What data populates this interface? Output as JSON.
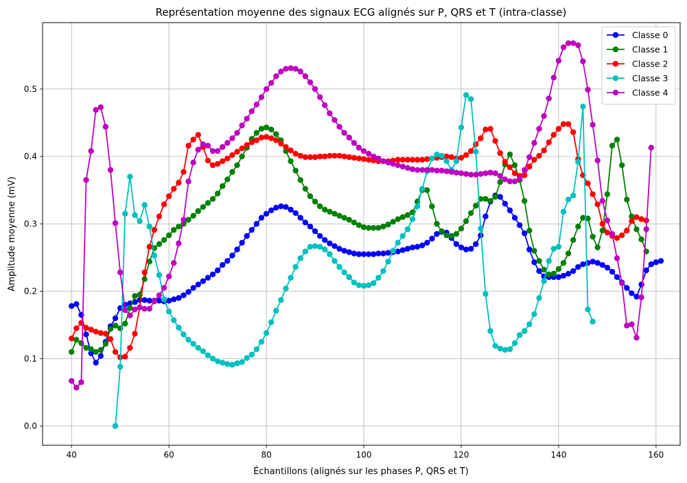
{
  "chart_data": {
    "type": "line",
    "title": "Représentation moyenne des signaux ECG alignés sur P, QRS et T (intra-classe)",
    "xlabel": "Échantillons (alignés sur les phases P, QRS et T)",
    "ylabel": "Amplitude moyenne (mV)",
    "xlim": [
      34.05,
      164.95
    ],
    "ylim": [
      -0.0285,
      0.5985
    ],
    "xticks": [
      40,
      60,
      80,
      100,
      120,
      140,
      160
    ],
    "yticks": [
      0.0,
      0.1,
      0.2,
      0.3,
      0.4,
      0.5
    ],
    "xtick_labels": [
      "40",
      "60",
      "80",
      "100",
      "120",
      "140",
      "160"
    ],
    "ytick_labels": [
      "0.0",
      "0.1",
      "0.2",
      "0.3",
      "0.4",
      "0.5"
    ],
    "grid": true,
    "legend_position": "top-right",
    "colors": {
      "Classe 0": "#0000ff",
      "Classe 1": "#008000",
      "Classe 2": "#ff0000",
      "Classe 3": "#00bfbf",
      "Classe 4": "#bf00bf"
    },
    "series": [
      {
        "name": "Classe 0",
        "x_start": 40,
        "values": [
          0.178,
          0.181,
          0.165,
          0.136,
          0.108,
          0.094,
          0.104,
          0.125,
          0.148,
          0.16,
          0.175,
          0.18,
          0.182,
          0.184,
          0.187,
          0.187,
          0.186,
          0.186,
          0.186,
          0.185,
          0.186,
          0.188,
          0.19,
          0.194,
          0.199,
          0.205,
          0.21,
          0.215,
          0.22,
          0.225,
          0.231,
          0.239,
          0.245,
          0.253,
          0.262,
          0.272,
          0.282,
          0.291,
          0.3,
          0.309,
          0.315,
          0.32,
          0.324,
          0.326,
          0.325,
          0.321,
          0.316,
          0.309,
          0.302,
          0.296,
          0.289,
          0.282,
          0.276,
          0.271,
          0.267,
          0.263,
          0.26,
          0.258,
          0.256,
          0.255,
          0.255,
          0.255,
          0.255,
          0.256,
          0.256,
          0.257,
          0.258,
          0.259,
          0.261,
          0.263,
          0.265,
          0.266,
          0.268,
          0.272,
          0.278,
          0.285,
          0.288,
          0.287,
          0.279,
          0.27,
          0.265,
          0.262,
          0.263,
          0.27,
          0.283,
          0.311,
          0.333,
          0.342,
          0.34,
          0.33,
          0.32,
          0.309,
          0.298,
          0.286,
          0.262,
          0.243,
          0.23,
          0.222,
          0.221,
          0.221,
          0.221,
          0.223,
          0.226,
          0.23,
          0.236,
          0.24,
          0.242,
          0.244,
          0.242,
          0.239,
          0.235,
          0.229,
          0.221,
          0.213,
          0.205,
          0.197,
          0.192,
          0.21,
          0.231,
          0.24,
          0.243,
          0.245
        ]
      },
      {
        "name": "Classe 1",
        "x_start": 40,
        "values": [
          0.11,
          0.128,
          0.123,
          0.116,
          0.114,
          0.11,
          0.113,
          0.122,
          0.144,
          0.149,
          0.145,
          0.152,
          0.175,
          0.193,
          0.195,
          0.218,
          0.244,
          0.264,
          0.27,
          0.276,
          0.283,
          0.291,
          0.296,
          0.3,
          0.306,
          0.312,
          0.319,
          0.325,
          0.331,
          0.337,
          0.345,
          0.356,
          0.366,
          0.377,
          0.387,
          0.4,
          0.413,
          0.426,
          0.435,
          0.441,
          0.443,
          0.44,
          0.433,
          0.424,
          0.408,
          0.393,
          0.379,
          0.365,
          0.352,
          0.341,
          0.333,
          0.326,
          0.321,
          0.318,
          0.315,
          0.312,
          0.309,
          0.306,
          0.302,
          0.298,
          0.295,
          0.294,
          0.294,
          0.294,
          0.296,
          0.299,
          0.303,
          0.307,
          0.31,
          0.313,
          0.317,
          0.333,
          0.35,
          0.35,
          0.326,
          0.3,
          0.289,
          0.283,
          0.282,
          0.285,
          0.293,
          0.304,
          0.316,
          0.327,
          0.337,
          0.337,
          0.334,
          0.34,
          0.362,
          0.388,
          0.403,
          0.387,
          0.365,
          0.334,
          0.29,
          0.26,
          0.245,
          0.232,
          0.225,
          0.226,
          0.233,
          0.242,
          0.256,
          0.276,
          0.296,
          0.309,
          0.308,
          0.281,
          0.265,
          0.29,
          0.344,
          0.416,
          0.425,
          0.387,
          0.336,
          0.311,
          0.292,
          0.277,
          0.259
        ]
      },
      {
        "name": "Classe 2",
        "x_start": 40,
        "values": [
          0.13,
          0.145,
          0.153,
          0.146,
          0.143,
          0.14,
          0.138,
          0.137,
          0.129,
          0.11,
          0.102,
          0.103,
          0.116,
          0.137,
          0.176,
          0.228,
          0.266,
          0.291,
          0.311,
          0.329,
          0.341,
          0.352,
          0.361,
          0.377,
          0.416,
          0.425,
          0.432,
          0.414,
          0.394,
          0.387,
          0.389,
          0.393,
          0.397,
          0.402,
          0.407,
          0.412,
          0.417,
          0.421,
          0.424,
          0.428,
          0.429,
          0.427,
          0.424,
          0.419,
          0.414,
          0.409,
          0.404,
          0.401,
          0.399,
          0.399,
          0.399,
          0.4,
          0.4,
          0.401,
          0.401,
          0.401,
          0.4,
          0.399,
          0.398,
          0.397,
          0.396,
          0.395,
          0.394,
          0.393,
          0.393,
          0.393,
          0.394,
          0.395,
          0.395,
          0.395,
          0.395,
          0.395,
          0.395,
          0.396,
          0.397,
          0.398,
          0.399,
          0.4,
          0.399,
          0.397,
          0.398,
          0.402,
          0.408,
          0.418,
          0.427,
          0.44,
          0.441,
          0.423,
          0.405,
          0.392,
          0.384,
          0.375,
          0.371,
          0.372,
          0.385,
          0.395,
          0.401,
          0.409,
          0.421,
          0.432,
          0.441,
          0.448,
          0.448,
          0.436,
          0.396,
          0.372,
          0.36,
          0.344,
          0.329,
          0.3,
          0.287,
          0.282,
          0.279,
          0.283,
          0.29,
          0.304,
          0.31,
          0.307,
          0.305
        ]
      },
      {
        "name": "Classe 3",
        "x_start": 49,
        "values": [
          0.0,
          0.088,
          0.315,
          0.37,
          0.313,
          0.304,
          0.328,
          0.296,
          0.253,
          0.224,
          0.188,
          0.17,
          0.157,
          0.146,
          0.136,
          0.128,
          0.122,
          0.116,
          0.111,
          0.105,
          0.1,
          0.096,
          0.094,
          0.092,
          0.091,
          0.093,
          0.095,
          0.101,
          0.106,
          0.114,
          0.125,
          0.138,
          0.154,
          0.171,
          0.187,
          0.204,
          0.22,
          0.236,
          0.249,
          0.259,
          0.266,
          0.267,
          0.266,
          0.262,
          0.255,
          0.245,
          0.236,
          0.228,
          0.221,
          0.213,
          0.209,
          0.208,
          0.209,
          0.212,
          0.22,
          0.23,
          0.244,
          0.26,
          0.272,
          0.282,
          0.292,
          0.307,
          0.326,
          0.352,
          0.378,
          0.397,
          0.403,
          0.401,
          0.393,
          0.38,
          0.393,
          0.443,
          0.491,
          0.485,
          0.407,
          0.293,
          0.196,
          0.141,
          0.119,
          0.115,
          0.113,
          0.114,
          0.123,
          0.135,
          0.141,
          0.151,
          0.166,
          0.19,
          0.215,
          0.245,
          0.263,
          0.266,
          0.318,
          0.336,
          0.342,
          0.392,
          0.474,
          0.173,
          0.155
        ]
      },
      {
        "name": "Classe 4",
        "x_start": 40,
        "values": [
          0.067,
          0.057,
          0.065,
          0.365,
          0.408,
          0.469,
          0.473,
          0.444,
          0.38,
          0.301,
          0.228,
          0.172,
          0.164,
          0.173,
          0.176,
          0.174,
          0.174,
          0.185,
          0.194,
          0.205,
          0.222,
          0.242,
          0.271,
          0.306,
          0.363,
          0.391,
          0.41,
          0.418,
          0.416,
          0.408,
          0.408,
          0.414,
          0.42,
          0.427,
          0.435,
          0.446,
          0.456,
          0.467,
          0.477,
          0.488,
          0.5,
          0.509,
          0.519,
          0.526,
          0.53,
          0.531,
          0.53,
          0.526,
          0.519,
          0.51,
          0.5,
          0.488,
          0.476,
          0.464,
          0.454,
          0.444,
          0.435,
          0.428,
          0.42,
          0.413,
          0.408,
          0.404,
          0.4,
          0.397,
          0.393,
          0.391,
          0.389,
          0.387,
          0.385,
          0.383,
          0.381,
          0.38,
          0.38,
          0.38,
          0.38,
          0.379,
          0.379,
          0.378,
          0.377,
          0.376,
          0.375,
          0.374,
          0.373,
          0.373,
          0.374,
          0.375,
          0.376,
          0.375,
          0.371,
          0.366,
          0.363,
          0.363,
          0.367,
          0.38,
          0.399,
          0.42,
          0.441,
          0.46,
          0.486,
          0.517,
          0.542,
          0.562,
          0.568,
          0.568,
          0.565,
          0.541,
          0.499,
          0.447,
          0.394,
          0.334,
          0.305,
          0.285,
          0.249,
          0.212,
          0.149,
          0.151,
          0.131,
          0.191,
          0.292,
          0.413
        ]
      }
    ]
  }
}
